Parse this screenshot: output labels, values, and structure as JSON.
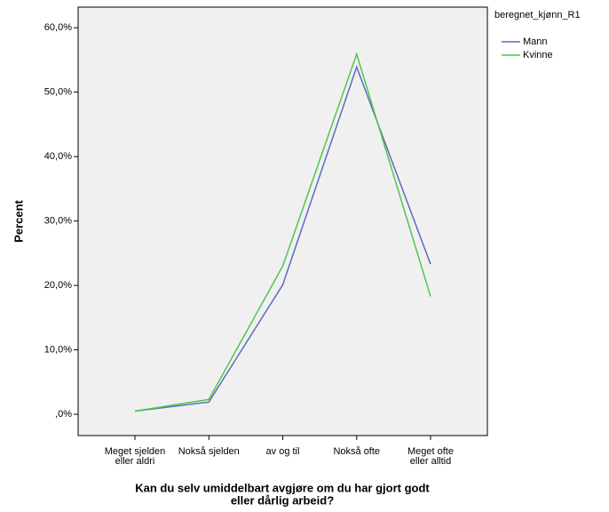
{
  "chart_data": {
    "type": "line",
    "categories": [
      [
        "Meget sjelden",
        "eller aldri"
      ],
      [
        "Nokså sjelden"
      ],
      [
        "av og til"
      ],
      [
        "Nokså ofte"
      ],
      [
        "Meget ofte",
        "eller alltid"
      ]
    ],
    "series": [
      {
        "name": "Mann",
        "color": "#5d6bbd",
        "values": [
          0.5,
          1.9,
          20.1,
          53.9,
          23.3
        ]
      },
      {
        "name": "Kvinne",
        "color": "#4fc64f",
        "values": [
          0.5,
          2.3,
          23.0,
          55.9,
          18.3
        ]
      }
    ],
    "ylim": [
      -3.3,
      63.2
    ],
    "yticks": [
      {
        "value": 0,
        "label": ",0%"
      },
      {
        "value": 10,
        "label": "10,0%"
      },
      {
        "value": 20,
        "label": "20,0%"
      },
      {
        "value": 30,
        "label": "30,0%"
      },
      {
        "value": 40,
        "label": "40,0%"
      },
      {
        "value": 50,
        "label": "50,0%"
      },
      {
        "value": 60,
        "label": "60,0%"
      }
    ],
    "ylabel": "Percent",
    "xlabel": [
      "Kan du selv umiddelbart avgjøre om du har gjort godt",
      "eller dårlig arbeid?"
    ],
    "legend_title": "beregnet_kjønn_R1",
    "legend_position": "upper right outside",
    "background": "#f0f0f0"
  }
}
